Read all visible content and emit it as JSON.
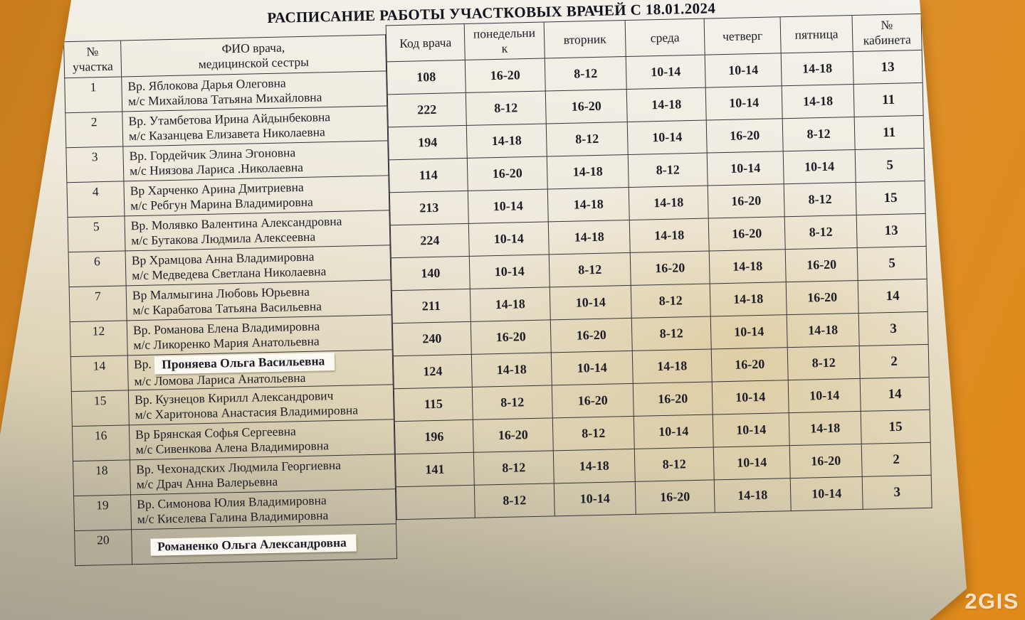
{
  "colors": {
    "background_orange": "#d88924",
    "paper_top": "#f4f2ed",
    "paper_bottom": "#a8a391",
    "ink": "#1d1d26",
    "pasted_label_bg": "#fbf9f1"
  },
  "watermark": "2GIS",
  "document": {
    "title": "РАСПИСАНИЕ РАБОТЫ УЧАСТКОВЫХ ВРАЧЕЙ С 18.01.2024",
    "table": {
      "headers": {
        "uchastok": [
          "№",
          "участка"
        ],
        "fio": [
          "ФИО врача,",
          "медицинской сестры"
        ],
        "code": [
          "Код врача"
        ],
        "days": [
          [
            "понедельни",
            "к"
          ],
          [
            "вторник"
          ],
          [
            "среда"
          ],
          [
            "четверг"
          ],
          [
            "пятница"
          ]
        ],
        "cabinet": [
          "№",
          "кабинета"
        ]
      },
      "rows": [
        {
          "u": "1",
          "doctor": "Вр. Яблокова Дарья Олеговна",
          "nurse": "м/с Михайлова Татьяна Михайловна",
          "code": "108",
          "times": [
            "16-20",
            "8-12",
            "10-14",
            "10-14",
            "14-18"
          ],
          "cab": "13"
        },
        {
          "u": "2",
          "doctor": "Вр. Утамбетова Ирина Айдынбековна",
          "nurse": "м/с Казанцева Елизавета Николаевна",
          "code": "222",
          "times": [
            "8-12",
            "16-20",
            "14-18",
            "10-14",
            "14-18"
          ],
          "cab": "11"
        },
        {
          "u": "3",
          "doctor": "Вр. Гордейчик Элина Эгоновна",
          "nurse": "м/с Ниязова Лариса .Николаевна",
          "code": "194",
          "times": [
            "14-18",
            "8-12",
            "10-14",
            "16-20",
            "8-12"
          ],
          "cab": "11"
        },
        {
          "u": "4",
          "doctor": "Вр Харченко Арина Дмитриевна",
          "nurse": "м/с Ребгун Марина Владимировна",
          "code": "114",
          "times": [
            "16-20",
            "14-18",
            "8-12",
            "10-14",
            "10-14"
          ],
          "cab": "5"
        },
        {
          "u": "5",
          "doctor": "Вр. Молявко Валентина Александровна",
          "nurse": "м/с Бутакова Людмила Алексеевна",
          "code": "213",
          "times": [
            "10-14",
            "14-18",
            "14-18",
            "16-20",
            "8-12"
          ],
          "cab": "15"
        },
        {
          "u": "6",
          "doctor": "Вр Храмцова Анна Владимировна",
          "nurse": "м/с Медведева Светлана Николаевна",
          "code": "224",
          "times": [
            "10-14",
            "14-18",
            "14-18",
            "16-20",
            "8-12"
          ],
          "cab": "13"
        },
        {
          "u": "7",
          "doctor": "Вр Малмыгина Любовь Юрьевна",
          "nurse": "м/с Карабатова Татьяна Васильевна",
          "code": "140",
          "times": [
            "10-14",
            "8-12",
            "16-20",
            "14-18",
            "16-20"
          ],
          "cab": "5"
        },
        {
          "u": "12",
          "doctor": "Вр. Романова Елена Владимировна",
          "nurse": "м/с Ликоренко Мария Анатольевна",
          "code": "211",
          "times": [
            "14-18",
            "10-14",
            "8-12",
            "14-18",
            "16-20"
          ],
          "cab": "14"
        },
        {
          "u": "14",
          "doctor": "Вр.",
          "doctor_pasted": "Проняева Ольга Васильевна",
          "nurse": "м/с Ломова Лариса Анатольевна",
          "code": "240",
          "times": [
            "16-20",
            "16-20",
            "8-12",
            "10-14",
            "14-18"
          ],
          "cab": "3"
        },
        {
          "u": "15",
          "doctor": "Вр. Кузнецов Кирилл Александрович",
          "nurse": "м/с Харитонова Анастасия Владимировна",
          "code": "124",
          "times": [
            "14-18",
            "10-14",
            "14-18",
            "16-20",
            "8-12"
          ],
          "cab": "2"
        },
        {
          "u": "16",
          "doctor": "Вр Брянская Софья Сергеевна",
          "nurse": "м/с Сивенкова Алена Владимировна",
          "code": "115",
          "times": [
            "8-12",
            "16-20",
            "16-20",
            "10-14",
            "10-14"
          ],
          "cab": "14"
        },
        {
          "u": "18",
          "doctor": "Вр. Чехонадских Людмила Георгиевна",
          "nurse": "м/с Драч Анна Валерьевна",
          "code": "196",
          "times": [
            "16-20",
            "8-12",
            "10-14",
            "10-14",
            "14-18"
          ],
          "cab": "15"
        },
        {
          "u": "19",
          "doctor": "Вр. Симонова Юлия Владимировна",
          "nurse": "м/с Киселева Галина Владимировна",
          "code": "141",
          "times": [
            "8-12",
            "14-18",
            "8-12",
            "10-14",
            "16-20"
          ],
          "cab": "2"
        },
        {
          "u": "20",
          "doctor": "",
          "doctor_pasted": "Романенко Ольга Александровна",
          "nurse": "",
          "code": "",
          "times": [
            "8-12",
            "10-14",
            "16-20",
            "14-18",
            "10-14"
          ],
          "cab": "3"
        }
      ]
    }
  }
}
